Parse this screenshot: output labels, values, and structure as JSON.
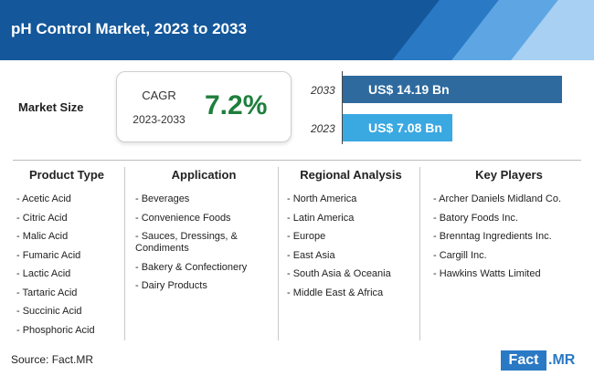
{
  "title": "pH Control Market, 2023 to 2033",
  "market": {
    "label": "Market Size",
    "cagr_label": "CAGR",
    "cagr_years": "2023-2033",
    "cagr_value": "7.2%"
  },
  "bars": [
    {
      "year": "2033",
      "value_text": "US$ 14.19 Bn",
      "value": 14.19,
      "color": "#2e6a9e"
    },
    {
      "year": "2023",
      "value_text": "US$ 7.08 Bn",
      "value": 7.08,
      "color": "#3aa8e1"
    }
  ],
  "columns": [
    {
      "heading": "Product Type",
      "items": [
        "- Acetic Acid",
        "- Citric Acid",
        "- Malic Acid",
        "- Fumaric Acid",
        "- Lactic Acid",
        "- Tartaric Acid",
        "- Succinic Acid",
        "- Phosphoric Acid"
      ]
    },
    {
      "heading": "Application",
      "items": [
        "- Beverages",
        "- Convenience Foods",
        "- Sauces, Dressings, & Condiments",
        "- Bakery & Confectionery",
        "- Dairy Products"
      ]
    },
    {
      "heading": "Regional Analysis",
      "items": [
        "- North America",
        "- Latin America",
        "- Europe",
        "- East Asia",
        "- South Asia & Oceania",
        "- Middle East & Africa"
      ]
    },
    {
      "heading": "Key Players",
      "items": [
        "- Archer Daniels Midland Co.",
        "- Batory Foods Inc.",
        "- Brenntag Ingredients Inc.",
        "- Cargill Inc.",
        "- Hawkins Watts Limited"
      ]
    }
  ],
  "source": "Source: Fact.MR",
  "logo": {
    "part1": "Fact",
    "part2": ".MR"
  },
  "colors": {
    "header": "#14579a",
    "accent_green": "#1e7f3c"
  }
}
